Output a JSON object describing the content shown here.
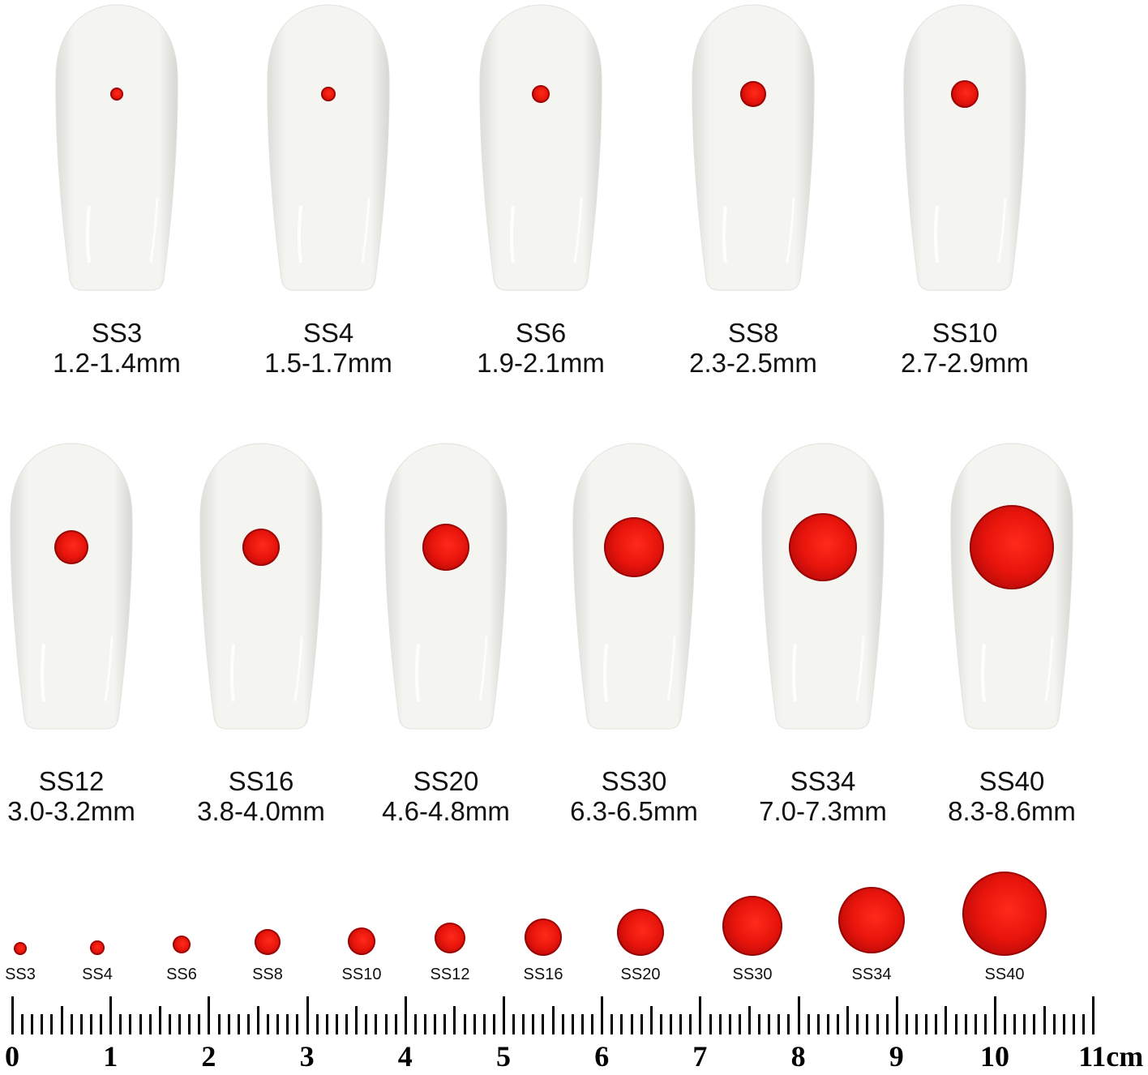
{
  "top_row": [
    {
      "name": "SS3",
      "range": "1.2-1.4mm"
    },
    {
      "name": "SS4",
      "range": "1.5-1.7mm"
    },
    {
      "name": "SS6",
      "range": "1.9-2.1mm"
    },
    {
      "name": "SS8",
      "range": "2.3-2.5mm"
    },
    {
      "name": "SS10",
      "range": "2.7-2.9mm"
    }
  ],
  "middle_row": [
    {
      "name": "SS12",
      "range": "3.0-3.2mm"
    },
    {
      "name": "SS16",
      "range": "3.8-4.0mm"
    },
    {
      "name": "SS20",
      "range": "4.6-4.8mm"
    },
    {
      "name": "SS30",
      "range": "6.3-6.5mm"
    },
    {
      "name": "SS34",
      "range": "7.0-7.3mm"
    },
    {
      "name": "SS40",
      "range": "8.3-8.6mm"
    }
  ],
  "bottom_row": [
    "SS3",
    "SS4",
    "SS6",
    "SS8",
    "SS10",
    "SS12",
    "SS16",
    "SS20",
    "SS30",
    "SS34",
    "SS40"
  ],
  "ruler": {
    "labels": [
      "0",
      "1",
      "2",
      "3",
      "4",
      "5",
      "6",
      "7",
      "8",
      "9",
      "10",
      "11cm"
    ]
  },
  "colors": {
    "gem": "#e8150c",
    "nail": "#f2f2ef",
    "ink": "#111111"
  }
}
